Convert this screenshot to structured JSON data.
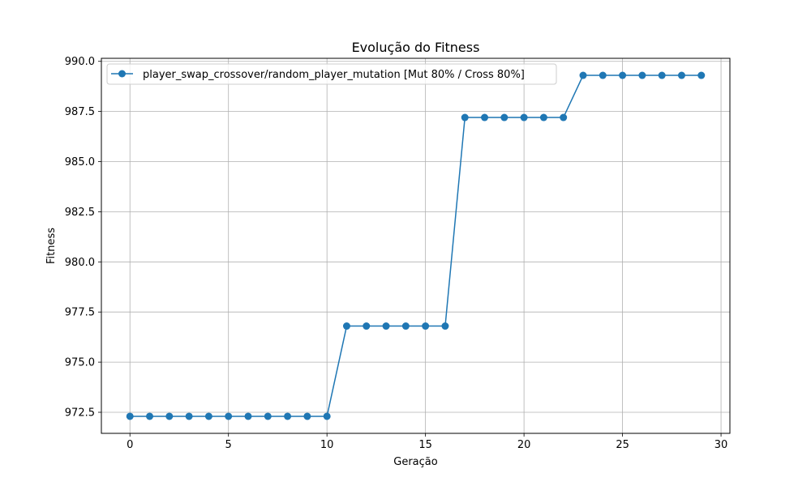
{
  "chart_data": {
    "type": "line",
    "title": "Evolução do Fitness",
    "xlabel": "Geração",
    "ylabel": "Fitness",
    "xlim": [
      -1.45,
      30.45
    ],
    "ylim": [
      971.45,
      990.15
    ],
    "xticks": [
      0,
      5,
      10,
      15,
      20,
      25,
      30
    ],
    "xtick_labels": [
      "0",
      "5",
      "10",
      "15",
      "20",
      "25",
      "30"
    ],
    "yticks": [
      972.5,
      975.0,
      977.5,
      980.0,
      982.5,
      985.0,
      987.5,
      990.0
    ],
    "ytick_labels": [
      "972.5",
      "975.0",
      "977.5",
      "980.0",
      "982.5",
      "985.0",
      "987.5",
      "990.0"
    ],
    "grid": true,
    "legend_position": "top-left",
    "series": [
      {
        "name": "player_swap_crossover/random_player_mutation [Mut 80% / Cross 80%]",
        "color": "#1f77b4",
        "marker": "circle",
        "x": [
          0,
          1,
          2,
          3,
          4,
          5,
          6,
          7,
          8,
          9,
          10,
          11,
          12,
          13,
          14,
          15,
          16,
          17,
          18,
          19,
          20,
          21,
          22,
          23,
          24,
          25,
          26,
          27,
          28,
          29
        ],
        "y": [
          972.3,
          972.3,
          972.3,
          972.3,
          972.3,
          972.3,
          972.3,
          972.3,
          972.3,
          972.3,
          972.3,
          976.8,
          976.8,
          976.8,
          976.8,
          976.8,
          976.8,
          987.2,
          987.2,
          987.2,
          987.2,
          987.2,
          987.2,
          989.3,
          989.3,
          989.3,
          989.3,
          989.3,
          989.3,
          989.3
        ]
      }
    ]
  }
}
